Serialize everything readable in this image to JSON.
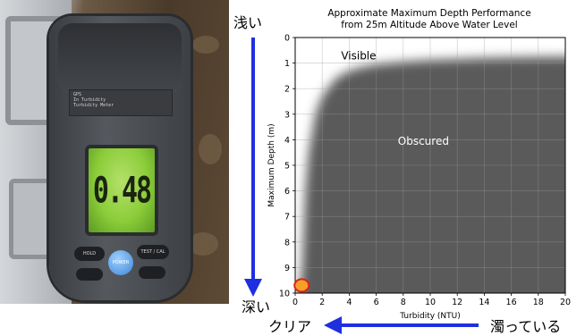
{
  "photo": {
    "meter_reading": "0.48",
    "label_lines": [
      "GPS",
      "In Turbidity",
      "Turbidity Meter"
    ],
    "buttons": {
      "hold": "HOLD",
      "test_cal": "TEST / CAL",
      "power": "POWER"
    }
  },
  "annotations": {
    "shallow": "浅い",
    "deep": "深い",
    "clear": "クリア",
    "turbid": "濁っている"
  },
  "colors": {
    "arrow": "#1f2fe0",
    "obscured": "#5a5a5a",
    "visible": "#ffffff",
    "marker_fill": "#f2a227",
    "marker_edge": "#e0201a"
  },
  "chart_data": {
    "type": "area",
    "title": "Approximate Maximum Depth Performance",
    "subtitle": "from 25m Altitude Above Water Level",
    "xlabel": "Turbidity (NTU)",
    "ylabel": "Maximum Depth (m)",
    "xlim": [
      0,
      20
    ],
    "ylim": [
      0,
      10
    ],
    "y_inverted": true,
    "xticks": [
      0,
      2,
      4,
      6,
      8,
      10,
      12,
      14,
      16,
      18,
      20
    ],
    "yticks": [
      0,
      1,
      2,
      3,
      4,
      5,
      6,
      7,
      8,
      9,
      10
    ],
    "regions": [
      {
        "name": "Visible",
        "position": "upper"
      },
      {
        "name": "Obscured",
        "position": "lower"
      }
    ],
    "boundary": {
      "x": [
        0.3,
        0.5,
        0.75,
        1,
        1.5,
        2,
        3,
        4,
        5,
        6,
        8,
        10,
        12,
        14,
        16,
        18,
        20
      ],
      "y": [
        10,
        9.0,
        6.0,
        4.5,
        3.0,
        2.3,
        1.6,
        1.3,
        1.15,
        1.05,
        0.95,
        0.88,
        0.84,
        0.8,
        0.78,
        0.76,
        0.75
      ]
    },
    "grid": true,
    "marker": {
      "x": 0.48,
      "y": 9.7
    }
  }
}
